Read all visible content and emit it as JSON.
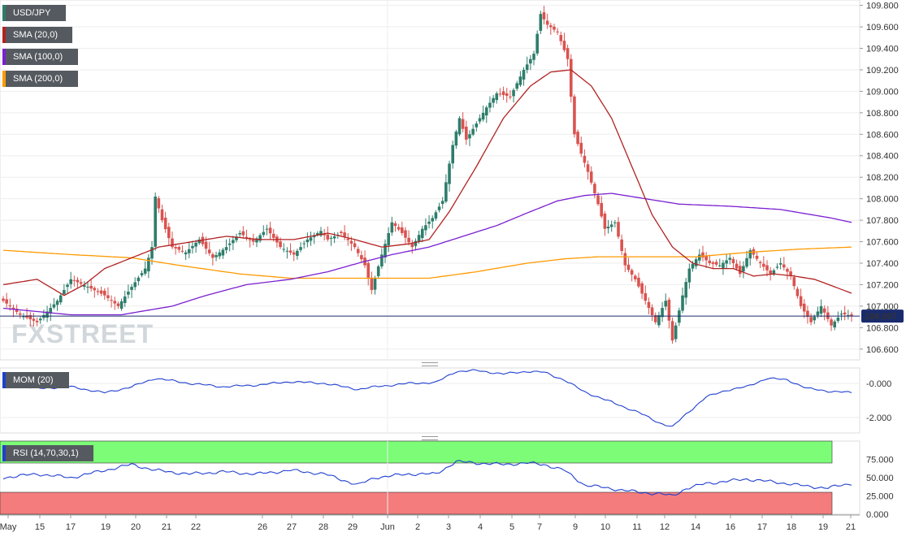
{
  "chart_data": [
    {
      "type": "candlestick",
      "symbol": "USD/JPY",
      "legend": [
        {
          "label": "USD/JPY",
          "color": "#2e7d6b"
        },
        {
          "label": "SMA (20,0)",
          "color": "#b22222"
        },
        {
          "label": "SMA (100,0)",
          "color": "#7b1fd0"
        },
        {
          "label": "SMA (200,0)",
          "color": "#ff9900"
        }
      ],
      "current_price_label": "106.907",
      "current_price": 106.907,
      "watermark": "FXSTREET",
      "ylim": [
        106.5,
        109.85
      ],
      "y_ticks": [
        "106.600",
        "106.800",
        "107.000",
        "107.200",
        "107.400",
        "107.600",
        "107.800",
        "108.000",
        "108.200",
        "108.400",
        "108.600",
        "108.800",
        "109.000",
        "109.200",
        "109.400",
        "109.600",
        "109.800"
      ],
      "x_ticks": [
        "May",
        "15",
        "17",
        "19",
        "20",
        "21",
        "22",
        "26",
        "27",
        "28",
        "29",
        "Jun",
        "2",
        "3",
        "4",
        "5",
        "7",
        "9",
        "10",
        "11",
        "12",
        "14",
        "16",
        "17",
        "18",
        "19",
        "21"
      ],
      "colors": {
        "up": "#2e7d6b",
        "down": "#d9534f",
        "sma20": "#b22222",
        "sma100": "#7b1fd0",
        "sma200": "#ff9900"
      },
      "price_path": [
        [
          0,
          107.05
        ],
        [
          5,
          106.92
        ],
        [
          10,
          106.85
        ],
        [
          16,
          107.05
        ],
        [
          20,
          107.25
        ],
        [
          25,
          107.18
        ],
        [
          30,
          107.1
        ],
        [
          34,
          107.0
        ],
        [
          38,
          107.18
        ],
        [
          42,
          107.35
        ],
        [
          44,
          107.55
        ],
        [
          45,
          108.02
        ],
        [
          47,
          107.8
        ],
        [
          50,
          107.55
        ],
        [
          54,
          107.5
        ],
        [
          58,
          107.62
        ],
        [
          62,
          107.45
        ],
        [
          66,
          107.55
        ],
        [
          70,
          107.68
        ],
        [
          74,
          107.6
        ],
        [
          78,
          107.72
        ],
        [
          82,
          107.55
        ],
        [
          86,
          107.48
        ],
        [
          90,
          107.62
        ],
        [
          94,
          107.7
        ],
        [
          96,
          107.62
        ],
        [
          100,
          107.68
        ],
        [
          104,
          107.55
        ],
        [
          107,
          107.38
        ],
        [
          109,
          107.15
        ],
        [
          112,
          107.48
        ],
        [
          115,
          107.78
        ],
        [
          118,
          107.68
        ],
        [
          121,
          107.55
        ],
        [
          124,
          107.72
        ],
        [
          127,
          107.82
        ],
        [
          130,
          107.98
        ],
        [
          133,
          108.5
        ],
        [
          135,
          108.75
        ],
        [
          137,
          108.55
        ],
        [
          140,
          108.7
        ],
        [
          143,
          108.85
        ],
        [
          146,
          108.98
        ],
        [
          150,
          108.95
        ],
        [
          154,
          109.2
        ],
        [
          157,
          109.35
        ],
        [
          159,
          109.72
        ],
        [
          161,
          109.62
        ],
        [
          164,
          109.55
        ],
        [
          167,
          109.3
        ],
        [
          169,
          108.6
        ],
        [
          171,
          108.42
        ],
        [
          173,
          108.25
        ],
        [
          176,
          107.95
        ],
        [
          178,
          107.72
        ],
        [
          181,
          107.78
        ],
        [
          184,
          107.38
        ],
        [
          187,
          107.25
        ],
        [
          190,
          107.05
        ],
        [
          193,
          106.85
        ],
        [
          196,
          107.05
        ],
        [
          198,
          106.68
        ],
        [
          201,
          107.1
        ],
        [
          203,
          107.35
        ],
        [
          206,
          107.48
        ],
        [
          209,
          107.4
        ],
        [
          212,
          107.38
        ],
        [
          215,
          107.45
        ],
        [
          218,
          107.3
        ],
        [
          221,
          107.52
        ],
        [
          224,
          107.4
        ],
        [
          227,
          107.3
        ],
        [
          230,
          107.4
        ],
        [
          233,
          107.28
        ],
        [
          236,
          107.0
        ],
        [
          239,
          106.85
        ],
        [
          242,
          107.0
        ],
        [
          245,
          106.82
        ],
        [
          248,
          106.93
        ],
        [
          251,
          106.91
        ]
      ],
      "sma20": [
        [
          0,
          107.2
        ],
        [
          10,
          107.25
        ],
        [
          18,
          107.1
        ],
        [
          24,
          107.2
        ],
        [
          30,
          107.35
        ],
        [
          38,
          107.45
        ],
        [
          46,
          107.55
        ],
        [
          56,
          107.6
        ],
        [
          66,
          107.65
        ],
        [
          76,
          107.62
        ],
        [
          86,
          107.62
        ],
        [
          96,
          107.68
        ],
        [
          104,
          107.62
        ],
        [
          112,
          107.55
        ],
        [
          120,
          107.58
        ],
        [
          126,
          107.62
        ],
        [
          132,
          107.88
        ],
        [
          140,
          108.3
        ],
        [
          148,
          108.75
        ],
        [
          156,
          109.05
        ],
        [
          162,
          109.18
        ],
        [
          168,
          109.2
        ],
        [
          174,
          109.05
        ],
        [
          180,
          108.75
        ],
        [
          186,
          108.3
        ],
        [
          192,
          107.85
        ],
        [
          198,
          107.55
        ],
        [
          204,
          107.4
        ],
        [
          210,
          107.35
        ],
        [
          216,
          107.35
        ],
        [
          222,
          107.28
        ],
        [
          228,
          107.3
        ],
        [
          234,
          107.28
        ],
        [
          240,
          107.25
        ],
        [
          246,
          107.18
        ],
        [
          251,
          107.12
        ]
      ],
      "sma100": [
        [
          0,
          106.98
        ],
        [
          20,
          106.92
        ],
        [
          35,
          106.92
        ],
        [
          50,
          107.0
        ],
        [
          60,
          107.1
        ],
        [
          72,
          107.2
        ],
        [
          85,
          107.25
        ],
        [
          96,
          107.32
        ],
        [
          105,
          107.4
        ],
        [
          115,
          107.48
        ],
        [
          126,
          107.55
        ],
        [
          136,
          107.65
        ],
        [
          146,
          107.75
        ],
        [
          156,
          107.88
        ],
        [
          164,
          107.98
        ],
        [
          172,
          108.03
        ],
        [
          180,
          108.05
        ],
        [
          190,
          108.0
        ],
        [
          200,
          107.95
        ],
        [
          215,
          107.93
        ],
        [
          230,
          107.9
        ],
        [
          245,
          107.82
        ],
        [
          251,
          107.78
        ]
      ],
      "sma200": [
        [
          0,
          107.52
        ],
        [
          20,
          107.48
        ],
        [
          38,
          107.45
        ],
        [
          52,
          107.38
        ],
        [
          70,
          107.3
        ],
        [
          85,
          107.26
        ],
        [
          100,
          107.26
        ],
        [
          114,
          107.26
        ],
        [
          126,
          107.26
        ],
        [
          140,
          107.32
        ],
        [
          155,
          107.4
        ],
        [
          166,
          107.44
        ],
        [
          176,
          107.46
        ],
        [
          190,
          107.46
        ],
        [
          205,
          107.46
        ],
        [
          220,
          107.5
        ],
        [
          235,
          107.53
        ],
        [
          251,
          107.55
        ]
      ]
    },
    {
      "type": "line",
      "legend_label": "MOM (20)",
      "color": "#1f3fcf",
      "ylim": [
        -2.9,
        0.9
      ],
      "y_ticks": [
        "-0.000",
        "-2.000"
      ],
      "values": [
        [
          0,
          -0.05
        ],
        [
          10,
          -0.3
        ],
        [
          20,
          -0.2
        ],
        [
          30,
          -0.55
        ],
        [
          38,
          -0.2
        ],
        [
          45,
          0.3
        ],
        [
          55,
          0.0
        ],
        [
          65,
          -0.2
        ],
        [
          75,
          -0.1
        ],
        [
          85,
          0.1
        ],
        [
          95,
          0.0
        ],
        [
          105,
          -0.35
        ],
        [
          110,
          -0.2
        ],
        [
          120,
          0.0
        ],
        [
          128,
          0.05
        ],
        [
          134,
          0.7
        ],
        [
          140,
          0.75
        ],
        [
          148,
          0.55
        ],
        [
          155,
          0.7
        ],
        [
          160,
          0.65
        ],
        [
          166,
          0.2
        ],
        [
          172,
          -0.5
        ],
        [
          180,
          -1.1
        ],
        [
          188,
          -1.7
        ],
        [
          194,
          -2.3
        ],
        [
          198,
          -2.55
        ],
        [
          202,
          -1.8
        ],
        [
          208,
          -0.8
        ],
        [
          214,
          -0.4
        ],
        [
          220,
          -0.2
        ],
        [
          226,
          0.3
        ],
        [
          232,
          0.2
        ],
        [
          238,
          -0.3
        ],
        [
          244,
          -0.45
        ],
        [
          251,
          -0.55
        ]
      ]
    },
    {
      "type": "line",
      "legend_label": "RSI (14,70,30,1)",
      "color": "#1f3fcf",
      "ylim": [
        0,
        100
      ],
      "y_ticks": [
        "75.000",
        "50.000",
        "25.000",
        "0.000"
      ],
      "overbought": 70,
      "oversold": 30,
      "values": [
        [
          0,
          50
        ],
        [
          10,
          55
        ],
        [
          20,
          50
        ],
        [
          30,
          60
        ],
        [
          38,
          68
        ],
        [
          45,
          60
        ],
        [
          55,
          55
        ],
        [
          65,
          58
        ],
        [
          75,
          55
        ],
        [
          85,
          60
        ],
        [
          95,
          55
        ],
        [
          105,
          40
        ],
        [
          110,
          50
        ],
        [
          120,
          55
        ],
        [
          128,
          55
        ],
        [
          134,
          72
        ],
        [
          140,
          70
        ],
        [
          148,
          68
        ],
        [
          155,
          70
        ],
        [
          160,
          68
        ],
        [
          166,
          60
        ],
        [
          172,
          40
        ],
        [
          180,
          35
        ],
        [
          188,
          30
        ],
        [
          194,
          28
        ],
        [
          198,
          25
        ],
        [
          202,
          35
        ],
        [
          208,
          42
        ],
        [
          214,
          45
        ],
        [
          220,
          48
        ],
        [
          226,
          45
        ],
        [
          232,
          42
        ],
        [
          238,
          38
        ],
        [
          244,
          36
        ],
        [
          251,
          42
        ]
      ]
    }
  ]
}
